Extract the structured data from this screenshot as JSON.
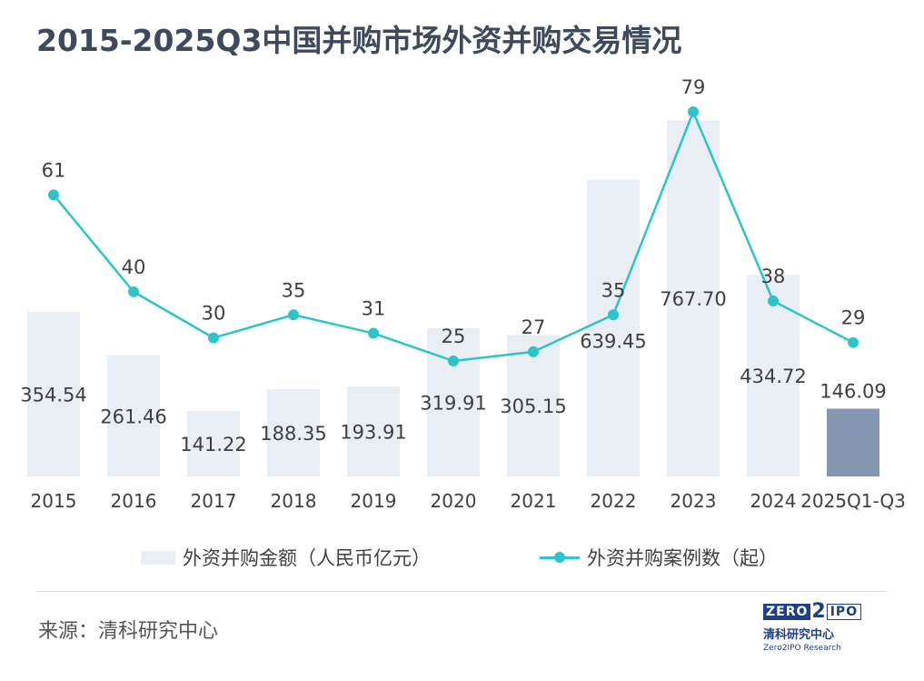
{
  "title": "2015-2025Q3中国并购市场外资并购交易情况",
  "chart_data": {
    "type": "bar+line",
    "categories": [
      "2015",
      "2016",
      "2017",
      "2018",
      "2019",
      "2020",
      "2021",
      "2022",
      "2023",
      "2024",
      "2025Q1-Q3"
    ],
    "series": [
      {
        "name": "外资并购金额（人民币亿元）",
        "type": "bar",
        "values": [
          354.54,
          261.46,
          141.22,
          188.35,
          193.91,
          319.91,
          305.15,
          639.45,
          767.7,
          434.72,
          146.09
        ],
        "labels": [
          "354.54",
          "261.46",
          "141.22",
          "188.35",
          "193.91",
          "319.91",
          "305.15",
          "639.45",
          "767.70",
          "434.72",
          "146.09"
        ],
        "color": "#e9edf4",
        "highlight_color": "#8496b0",
        "highlight_index": 10
      },
      {
        "name": "外资并购案例数（起）",
        "type": "line",
        "values": [
          61,
          40,
          30,
          35,
          31,
          25,
          27,
          35,
          79,
          38,
          29
        ],
        "labels": [
          "61",
          "40",
          "30",
          "35",
          "31",
          "25",
          "27",
          "35",
          "79",
          "38",
          "29"
        ],
        "color": "#2cc4c8"
      }
    ],
    "bar_axis_range": [
      0,
      1050
    ],
    "line_axis_range": [
      0,
      92
    ],
    "legend_position": "bottom",
    "grid": false
  },
  "source": "来源：清科研究中心",
  "logo": {
    "zero": "ZERO",
    "two": "2",
    "ipo": "IPO",
    "cn": "清科研究中心",
    "en": "Zero2IPO Research"
  }
}
